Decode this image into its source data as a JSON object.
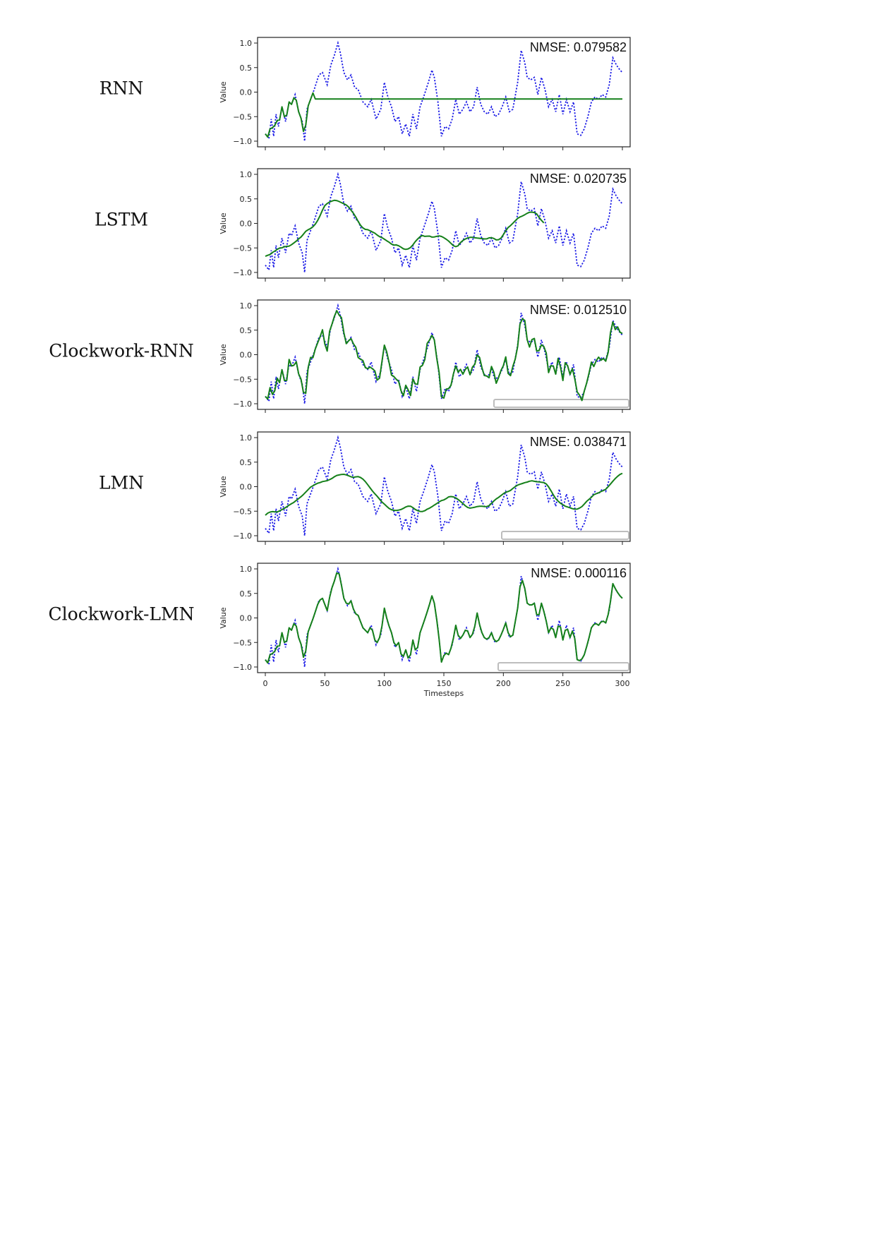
{
  "chart_data": [
    {
      "type": "line",
      "model_label": "RNN",
      "annotation": "NMSE: 0.079582",
      "ylabel": "Value",
      "xlabel": "",
      "xlim": [
        0,
        300
      ],
      "ylim": [
        -1.0,
        1.0
      ],
      "yticks": [
        "1.0",
        "0.5",
        "0.0",
        "−0.5",
        "−1.0"
      ],
      "xticks": [
        "0",
        "50",
        "100",
        "150",
        "200",
        "250",
        "300"
      ],
      "grid": false,
      "series_styles": [
        {
          "role": "target",
          "color": "#1a1ae6",
          "style": "dotted"
        },
        {
          "role": "prediction",
          "color": "#15801a",
          "style": "solid"
        }
      ],
      "prediction_profile": {
        "mode": "settle",
        "settle_from": 42,
        "settle_value": -0.14
      }
    },
    {
      "type": "line",
      "model_label": "LSTM",
      "annotation": "NMSE: 0.020735",
      "ylabel": "Value",
      "xlabel": "",
      "xlim": [
        0,
        300
      ],
      "ylim": [
        -1.0,
        1.0
      ],
      "yticks": [
        "1.0",
        "0.5",
        "0.0",
        "−0.5",
        "−1.0"
      ],
      "xticks": [
        "0",
        "50",
        "100",
        "150",
        "200",
        "250",
        "300"
      ],
      "grid": false,
      "prediction_profile": {
        "mode": "smooth",
        "window": 7,
        "damp_from": 235,
        "damp_value": -0.3
      }
    },
    {
      "type": "line",
      "model_label": "Clockwork-RNN",
      "annotation": "NMSE: 0.012510",
      "ylabel": "Value",
      "xlabel": "",
      "xlim": [
        0,
        300
      ],
      "ylim": [
        -1.0,
        1.0
      ],
      "yticks": [
        "1.0",
        "0.5",
        "0.0",
        "−0.5",
        "−1.0"
      ],
      "xticks": [
        "0",
        "50",
        "100",
        "150",
        "200",
        "250",
        "300"
      ],
      "grid": false,
      "prediction_profile": {
        "mode": "noisy",
        "noise": 0.12
      }
    },
    {
      "type": "line",
      "model_label": "LMN",
      "annotation": "NMSE: 0.038471",
      "ylabel": "Value",
      "xlabel": "",
      "xlim": [
        0,
        300
      ],
      "ylim": [
        -1.0,
        1.0
      ],
      "yticks": [
        "1.0",
        "0.5",
        "0.0",
        "−0.5",
        "−1.0"
      ],
      "xticks": [
        "0",
        "50",
        "100",
        "150",
        "200",
        "250",
        "300"
      ],
      "grid": false,
      "prediction_profile": {
        "mode": "wave"
      }
    },
    {
      "type": "line",
      "model_label": "Clockwork-LMN",
      "annotation": "NMSE: 0.000116",
      "ylabel": "Value",
      "xlabel": "Timesteps",
      "xlim": [
        0,
        300
      ],
      "ylim": [
        -1.0,
        1.0
      ],
      "yticks": [
        "1.0",
        "0.5",
        "0.0",
        "−0.5",
        "−1.0"
      ],
      "xticks": [
        "0",
        "50",
        "100",
        "150",
        "200",
        "250",
        "300"
      ],
      "grid": false,
      "prediction_profile": {
        "mode": "exact"
      }
    }
  ],
  "target_signal": {
    "x": [
      0,
      3,
      5,
      7,
      9,
      11,
      14,
      17,
      20,
      22,
      25,
      28,
      31,
      33,
      35,
      38,
      41,
      45,
      48,
      52,
      55,
      58,
      61,
      63,
      66,
      69,
      72,
      75,
      78,
      82,
      86,
      89,
      93,
      97,
      100,
      103,
      106,
      109,
      112,
      115,
      118,
      121,
      124,
      127,
      130,
      133,
      137,
      140,
      142,
      145,
      148,
      151,
      154,
      157,
      160,
      163,
      166,
      169,
      172,
      175,
      178,
      181,
      184,
      187,
      190,
      193,
      196,
      199,
      202,
      205,
      208,
      212,
      215,
      218,
      220,
      223,
      226,
      229,
      232,
      235,
      238,
      241,
      244,
      247,
      250,
      253,
      256,
      259,
      262,
      265,
      268,
      271,
      274,
      277,
      280,
      283,
      286,
      289,
      292,
      295,
      298,
      300
    ],
    "y": [
      -0.85,
      -0.95,
      -0.55,
      -0.9,
      -0.45,
      -0.7,
      -0.3,
      -0.6,
      -0.2,
      -0.25,
      -0.05,
      -0.4,
      -0.6,
      -1.0,
      -0.35,
      -0.15,
      0.05,
      0.35,
      0.4,
      0.15,
      0.55,
      0.75,
      1.0,
      0.8,
      0.4,
      0.25,
      0.35,
      0.1,
      0.05,
      -0.2,
      -0.3,
      -0.15,
      -0.55,
      -0.35,
      0.2,
      -0.1,
      -0.3,
      -0.6,
      -0.5,
      -0.85,
      -0.65,
      -0.9,
      -0.45,
      -0.75,
      -0.3,
      -0.1,
      0.2,
      0.45,
      0.3,
      -0.2,
      -0.9,
      -0.7,
      -0.75,
      -0.55,
      -0.15,
      -0.45,
      -0.35,
      -0.2,
      -0.4,
      -0.3,
      0.1,
      -0.25,
      -0.4,
      -0.45,
      -0.3,
      -0.5,
      -0.45,
      -0.3,
      -0.1,
      -0.4,
      -0.35,
      0.2,
      0.85,
      0.6,
      0.3,
      0.25,
      0.3,
      -0.05,
      0.3,
      0.05,
      -0.3,
      -0.15,
      -0.4,
      -0.05,
      -0.45,
      -0.15,
      -0.4,
      -0.2,
      -0.85,
      -0.88,
      -0.75,
      -0.5,
      -0.2,
      -0.1,
      -0.15,
      -0.05,
      -0.1,
      0.15,
      0.7,
      0.55,
      0.45,
      0.4
    ]
  }
}
